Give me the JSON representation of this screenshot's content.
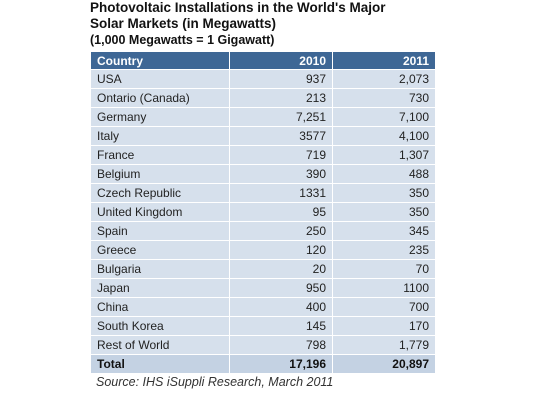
{
  "chart_data": {
    "type": "table",
    "title": "Photovoltaic Installations in the World's Major Solar Markets (in Megawatts)",
    "title_lines": [
      "Photovoltaic Installations in the World's Major",
      "Solar Markets (in Megawatts)"
    ],
    "subtitle": "(1,000 Megawatts = 1 Gigawatt)",
    "columns": [
      "Country",
      "2010",
      "2011"
    ],
    "rows": [
      [
        "USA",
        "937",
        "2,073"
      ],
      [
        "Ontario (Canada)",
        "213",
        "730"
      ],
      [
        "Germany",
        "7,251",
        "7,100"
      ],
      [
        "Italy",
        "3577",
        "4,100"
      ],
      [
        "France",
        "719",
        "1,307"
      ],
      [
        "Belgium",
        "390",
        "488"
      ],
      [
        "Czech Republic",
        "1331",
        "350"
      ],
      [
        "United Kingdom",
        "95",
        "350"
      ],
      [
        "Spain",
        "250",
        "345"
      ],
      [
        "Greece",
        "120",
        "235"
      ],
      [
        "Bulgaria",
        "20",
        "70"
      ],
      [
        "Japan",
        "950",
        "1100"
      ],
      [
        "China",
        "400",
        "700"
      ],
      [
        "South Korea",
        "145",
        "170"
      ],
      [
        "Rest of World",
        "798",
        "1,779"
      ]
    ],
    "total": [
      "Total",
      "17,196",
      "20,897"
    ],
    "source": "Source: IHS iSuppli Research, March 2011"
  },
  "colors": {
    "header_background": "#3e6795",
    "row_background": "#d6e0ec",
    "total_background": "#c4d2e3"
  }
}
